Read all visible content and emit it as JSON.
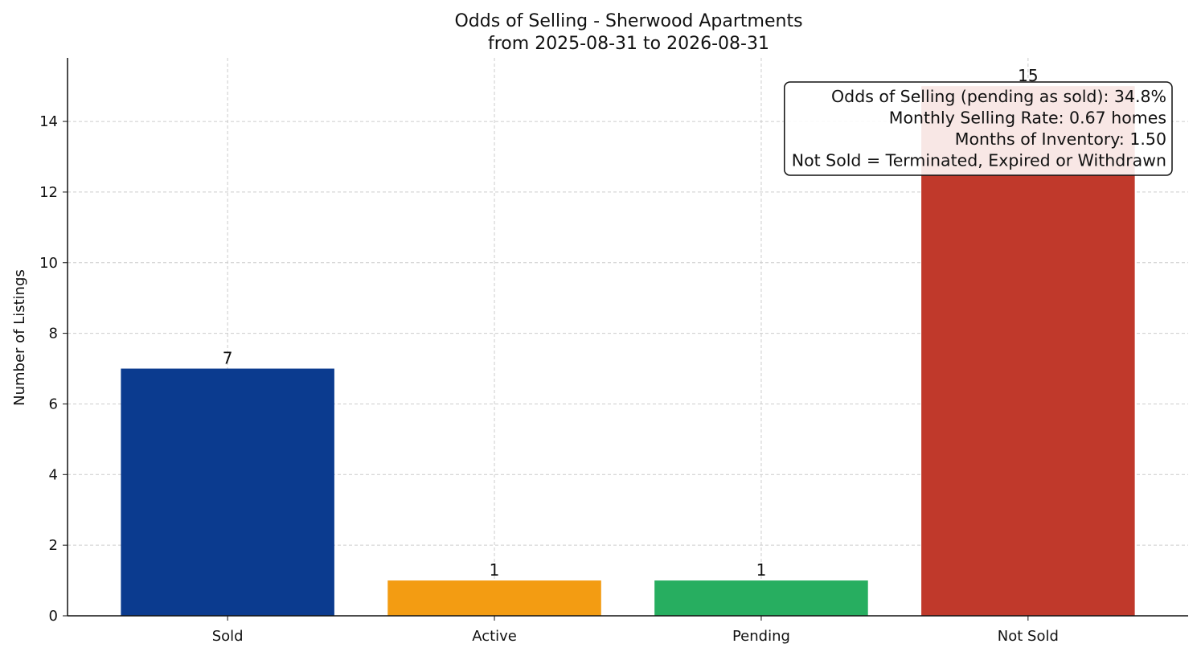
{
  "chart_data": {
    "type": "bar",
    "title": "Odds of Selling - Sherwood Apartments",
    "subtitle": "from 2025-08-31 to 2026-08-31",
    "xlabel": "",
    "ylabel": "Number of Listings",
    "categories": [
      "Sold",
      "Active",
      "Pending",
      "Not Sold"
    ],
    "values": [
      7,
      1,
      1,
      15
    ],
    "colors": [
      "#0b3b8f",
      "#f39c12",
      "#27ae60",
      "#c0392b"
    ],
    "ylim": [
      0,
      15.8
    ],
    "yticks": [
      0,
      2,
      4,
      6,
      8,
      10,
      12,
      14
    ],
    "grid": true,
    "annotation": {
      "placement": "top-right",
      "lines": [
        "Odds of Selling (pending as sold): 34.8%",
        "Monthly Selling Rate: 0.67 homes",
        "Months of Inventory: 1.50",
        "Not Sold = Terminated, Expired or Withdrawn"
      ]
    }
  }
}
